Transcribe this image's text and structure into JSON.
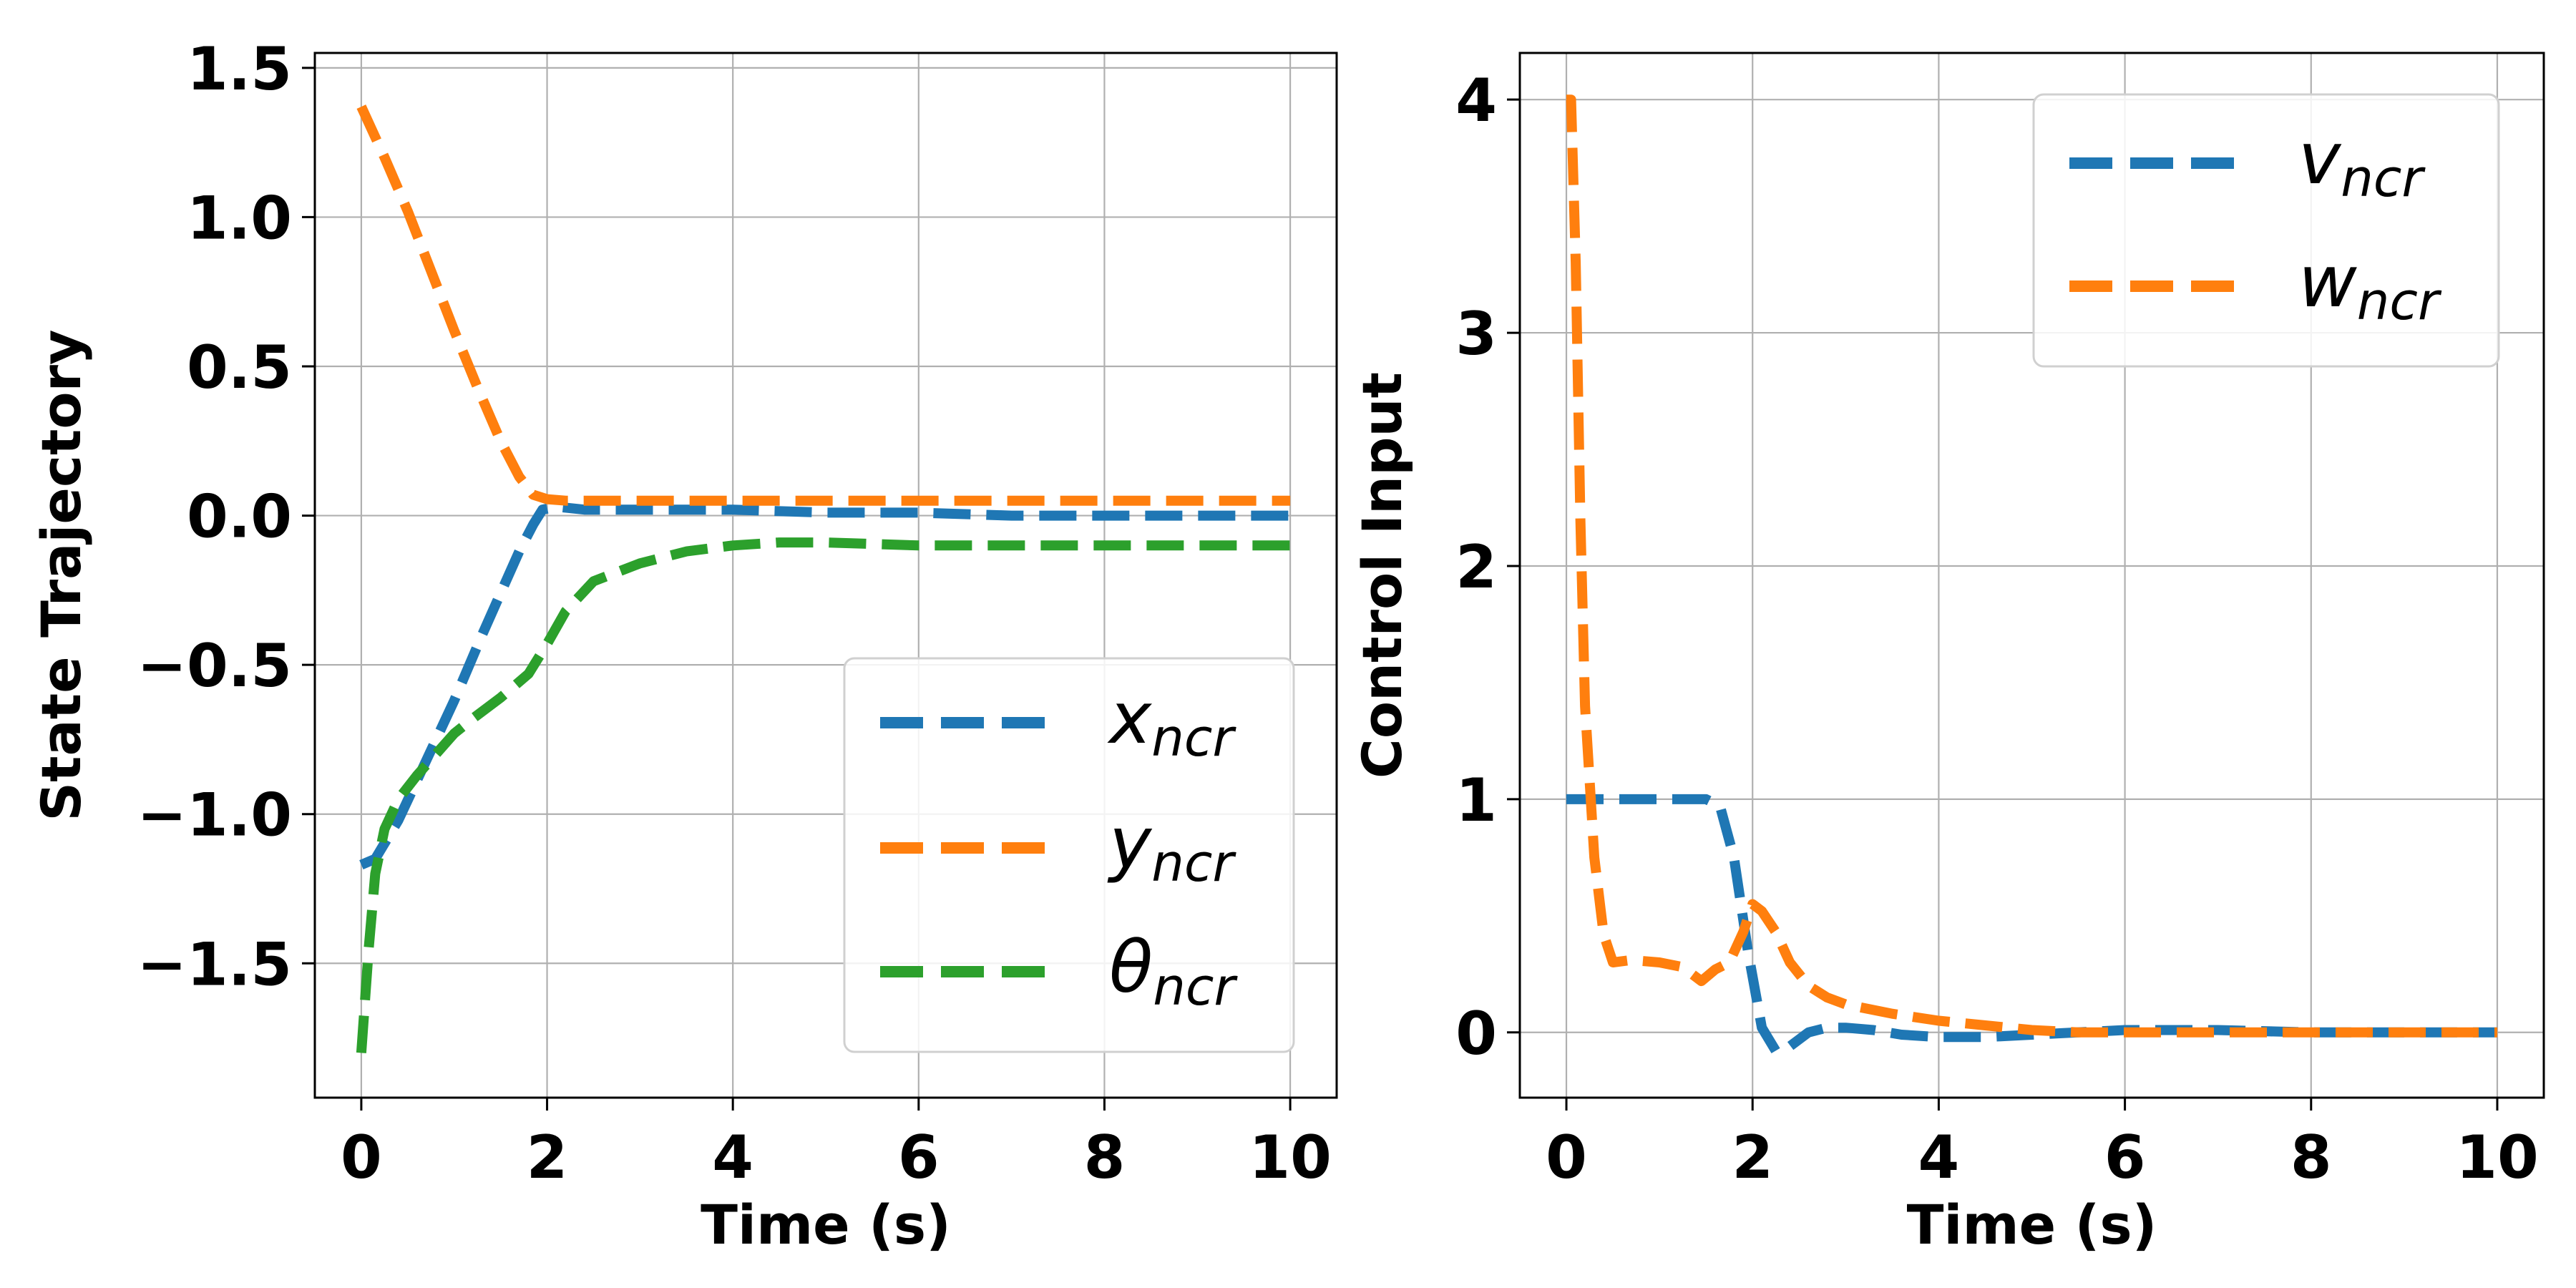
{
  "chart_data": [
    {
      "type": "line",
      "xlabel": "Time (s)",
      "ylabel": "State Trajectory",
      "xlim": [
        -0.5,
        10.5
      ],
      "ylim": [
        -1.95,
        1.55
      ],
      "xticks": [
        0,
        2,
        4,
        6,
        8,
        10
      ],
      "yticks": [
        1.5,
        1.0,
        0.5,
        0.0,
        -0.5,
        -1.0,
        -1.5
      ],
      "xtick_labels": [
        "0",
        "2",
        "4",
        "6",
        "8",
        "10"
      ],
      "ytick_labels": [
        "1.5",
        "1.0",
        "0.5",
        "0.0",
        "−0.5",
        "−1.0",
        "−1.5"
      ],
      "grid": true,
      "legend_position": "lower-right",
      "series": [
        {
          "name": "x",
          "subscript": "ncr",
          "color": "#1f77b4",
          "x": [
            0,
            0.15,
            0.4,
            0.7,
            1.0,
            1.3,
            1.5,
            1.7,
            1.85,
            1.95,
            2.1,
            2.4,
            3,
            4,
            5,
            6,
            7,
            8,
            9,
            10
          ],
          "y": [
            -1.17,
            -1.15,
            -1.02,
            -0.82,
            -0.62,
            -0.4,
            -0.26,
            -0.12,
            -0.03,
            0.02,
            0.03,
            0.02,
            0.02,
            0.02,
            0.01,
            0.01,
            0.0,
            0.0,
            0.0,
            0.0
          ]
        },
        {
          "name": "y",
          "subscript": "ncr",
          "color": "#ff7f0e",
          "x": [
            0,
            0.25,
            0.5,
            0.75,
            1.0,
            1.25,
            1.5,
            1.7,
            1.85,
            2.0,
            2.2,
            3,
            4,
            5,
            6,
            7,
            8,
            9,
            10
          ],
          "y": [
            1.37,
            1.2,
            1.02,
            0.82,
            0.62,
            0.43,
            0.25,
            0.13,
            0.07,
            0.055,
            0.05,
            0.05,
            0.05,
            0.05,
            0.05,
            0.05,
            0.05,
            0.05,
            0.05
          ]
        },
        {
          "name": "θ",
          "subscript": "ncr",
          "color": "#2ca02c",
          "x": [
            0,
            0.08,
            0.15,
            0.25,
            0.4,
            0.6,
            0.8,
            1.0,
            1.2,
            1.5,
            1.8,
            2.0,
            2.2,
            2.5,
            3,
            3.5,
            4,
            4.5,
            5,
            6,
            7,
            8,
            9,
            10
          ],
          "y": [
            -1.8,
            -1.45,
            -1.2,
            -1.05,
            -0.95,
            -0.87,
            -0.8,
            -0.73,
            -0.68,
            -0.61,
            -0.53,
            -0.43,
            -0.32,
            -0.22,
            -0.16,
            -0.12,
            -0.1,
            -0.09,
            -0.09,
            -0.1,
            -0.1,
            -0.1,
            -0.1,
            -0.1
          ]
        }
      ]
    },
    {
      "type": "line",
      "xlabel": "Time (s)",
      "ylabel": "Control Input",
      "xlim": [
        -0.5,
        10.5
      ],
      "ylim": [
        -0.28,
        4.2
      ],
      "xticks": [
        0,
        2,
        4,
        6,
        8,
        10
      ],
      "yticks": [
        4,
        3,
        2,
        1,
        0
      ],
      "xtick_labels": [
        "0",
        "2",
        "4",
        "6",
        "8",
        "10"
      ],
      "ytick_labels": [
        "4",
        "3",
        "2",
        "1",
        "0"
      ],
      "grid": true,
      "legend_position": "upper-right",
      "series": [
        {
          "name": "v",
          "subscript": "ncr",
          "color": "#1f77b4",
          "x": [
            0,
            0.5,
            1.0,
            1.5,
            1.65,
            1.8,
            1.95,
            2.1,
            2.25,
            2.4,
            2.6,
            2.8,
            3.0,
            3.3,
            3.6,
            4.0,
            4.5,
            5.0,
            6,
            7,
            8,
            9,
            10
          ],
          "y": [
            1.0,
            1.0,
            1.0,
            1.0,
            0.97,
            0.75,
            0.35,
            0.02,
            -0.08,
            -0.06,
            0.0,
            0.02,
            0.02,
            0.01,
            -0.01,
            -0.02,
            -0.02,
            -0.01,
            0.01,
            0.01,
            0.0,
            0.0,
            0.0
          ]
        },
        {
          "name": "w",
          "subscript": "ncr",
          "color": "#ff7f0e",
          "x": [
            0,
            0.05,
            0.1,
            0.15,
            0.2,
            0.3,
            0.4,
            0.5,
            0.7,
            1.0,
            1.25,
            1.45,
            1.6,
            1.75,
            1.9,
            2.0,
            2.1,
            2.25,
            2.4,
            2.6,
            2.8,
            3.0,
            3.5,
            4.0,
            4.5,
            5.0,
            5.5,
            6,
            7,
            8,
            9,
            10
          ],
          "y": [
            4.0,
            4.0,
            3.3,
            2.2,
            1.4,
            0.75,
            0.42,
            0.3,
            0.31,
            0.3,
            0.28,
            0.22,
            0.27,
            0.3,
            0.43,
            0.55,
            0.52,
            0.43,
            0.3,
            0.2,
            0.15,
            0.12,
            0.08,
            0.05,
            0.03,
            0.01,
            0.0,
            0.0,
            0.0,
            0.0,
            0.0,
            0.0
          ]
        }
      ]
    }
  ]
}
